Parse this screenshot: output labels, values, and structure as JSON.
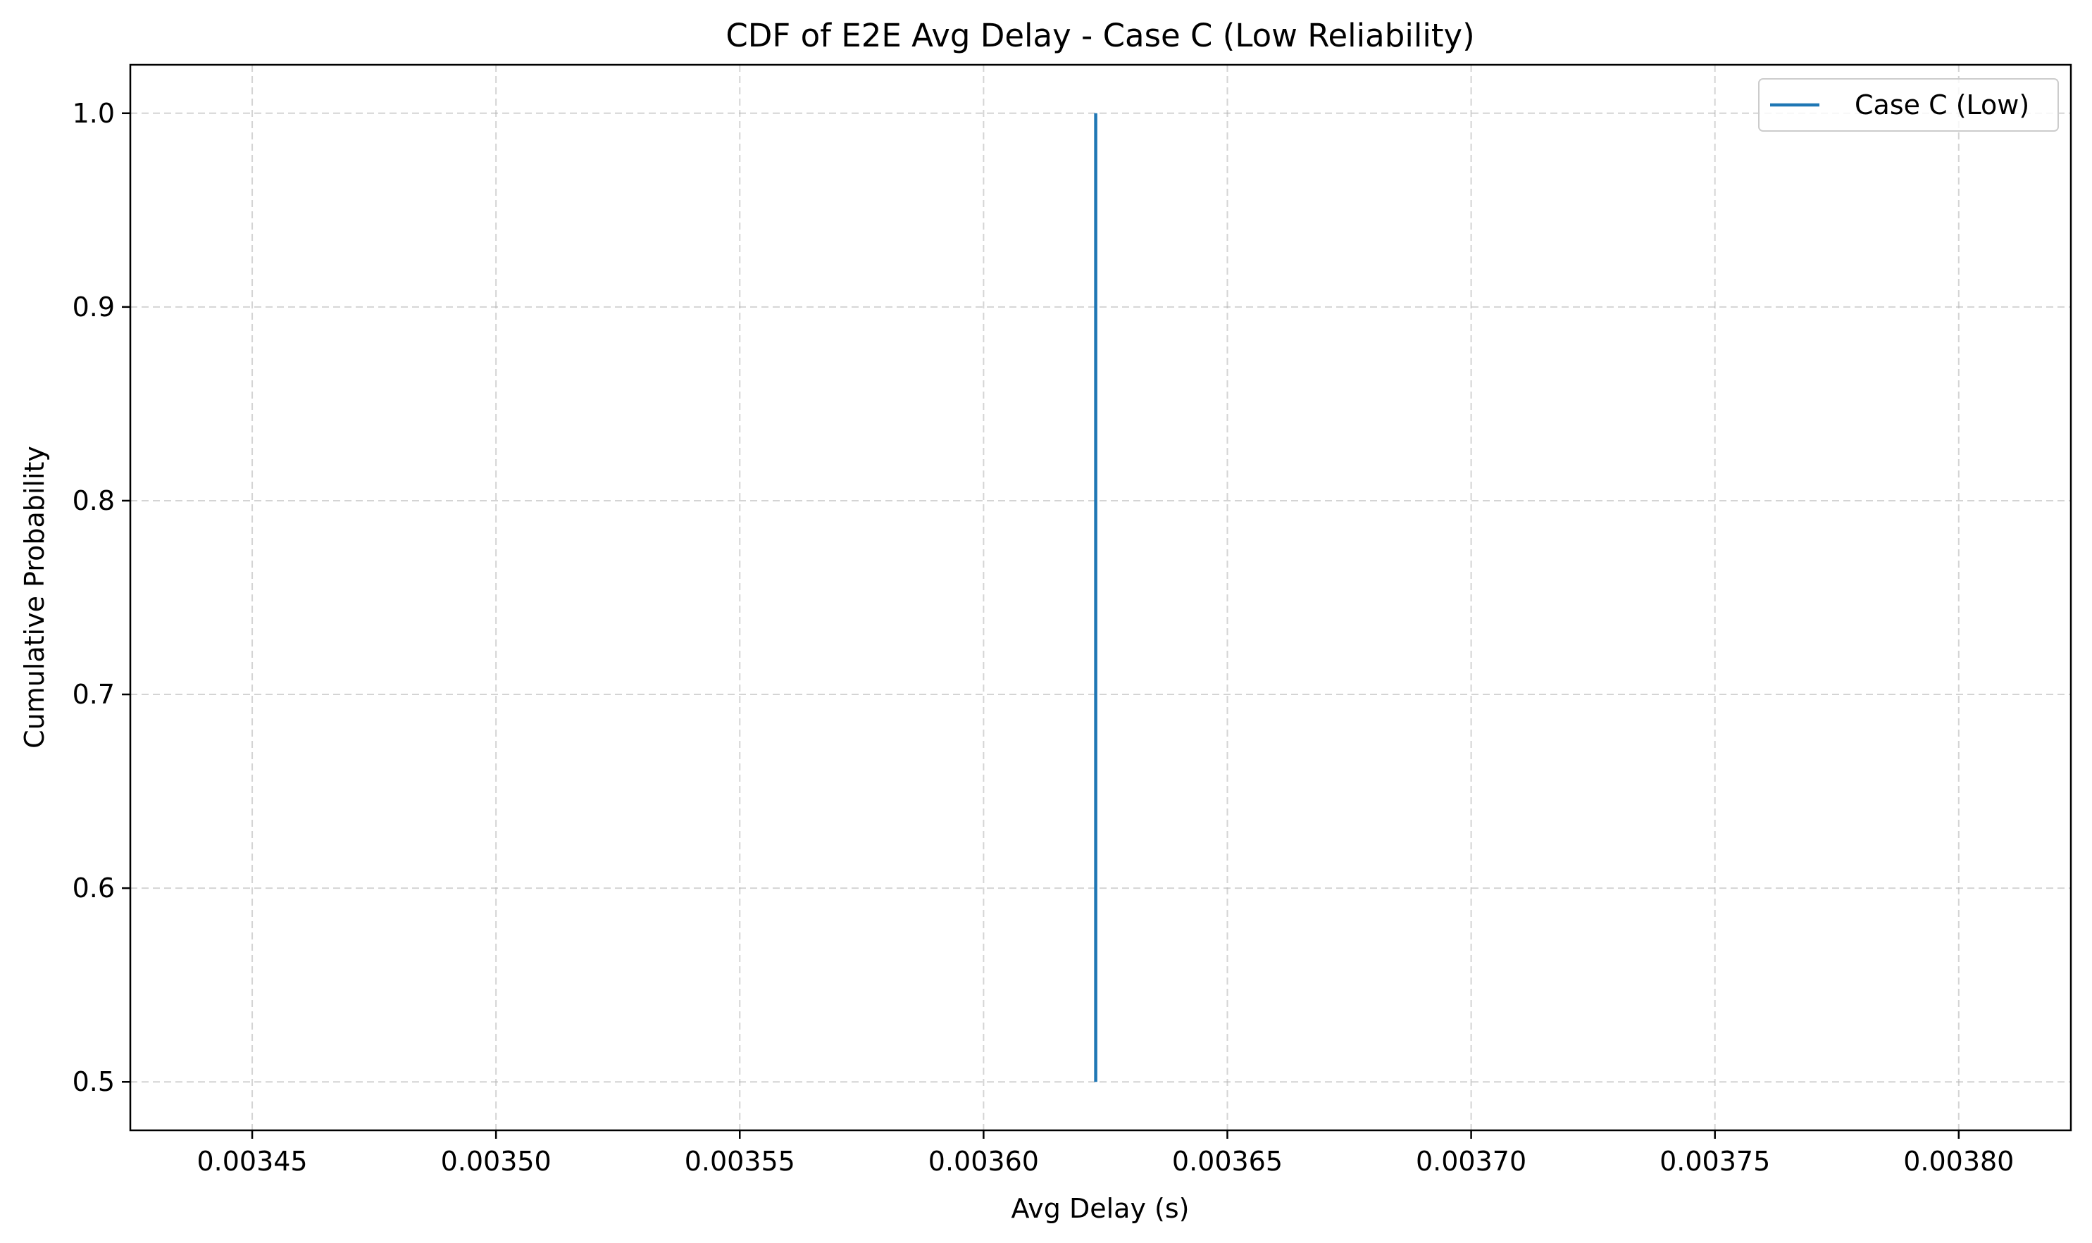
{
  "chart_data": {
    "type": "line",
    "title": "CDF of E2E Avg Delay - Case C (Low Reliability)",
    "xlabel": "Avg Delay (s)",
    "ylabel": "Cumulative Probability",
    "xlim": [
      0.003425,
      0.003823
    ],
    "ylim": [
      0.475,
      1.025
    ],
    "xticks": [
      0.00345,
      0.0035,
      0.00355,
      0.0036,
      0.00365,
      0.0037,
      0.00375,
      0.0038
    ],
    "xtick_labels": [
      "0.00345",
      "0.00350",
      "0.00355",
      "0.00360",
      "0.00365",
      "0.00370",
      "0.00375",
      "0.00380"
    ],
    "yticks": [
      0.5,
      0.6,
      0.7,
      0.8,
      0.9,
      1.0
    ],
    "ytick_labels": [
      "0.5",
      "0.6",
      "0.7",
      "0.8",
      "0.9",
      "1.0"
    ],
    "grid": true,
    "legend_position": "top-right",
    "series": [
      {
        "name": "Case C (Low)",
        "color": "#1f77b4",
        "x": [
          0.003623,
          0.003623
        ],
        "y": [
          0.5,
          1.0
        ]
      }
    ]
  }
}
